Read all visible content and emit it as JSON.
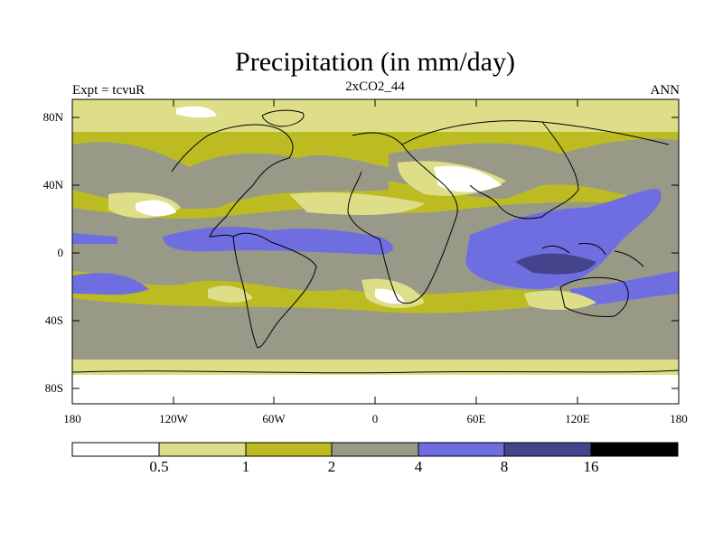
{
  "header": {
    "title": "Precipitation (in mm/day)",
    "subtitle": "2xCO2_44",
    "left_label": "Expt = tcvuR",
    "right_label": "ANN"
  },
  "axes": {
    "y_ticks": [
      "80N",
      "40N",
      "0",
      "40S",
      "80S"
    ],
    "x_ticks": [
      "180",
      "120W",
      "60W",
      "0",
      "60E",
      "120E",
      "180"
    ]
  },
  "colorbar": {
    "labels": [
      "0.5",
      "1",
      "2",
      "4",
      "8",
      "16"
    ],
    "colors": [
      "#ffffff",
      "#dede88",
      "#bcbc22",
      "#999988",
      "#6e6ee0",
      "#44448c",
      "#000000"
    ]
  },
  "legend_levels_mm_per_day": [
    0.5,
    1,
    2,
    4,
    8,
    16
  ]
}
